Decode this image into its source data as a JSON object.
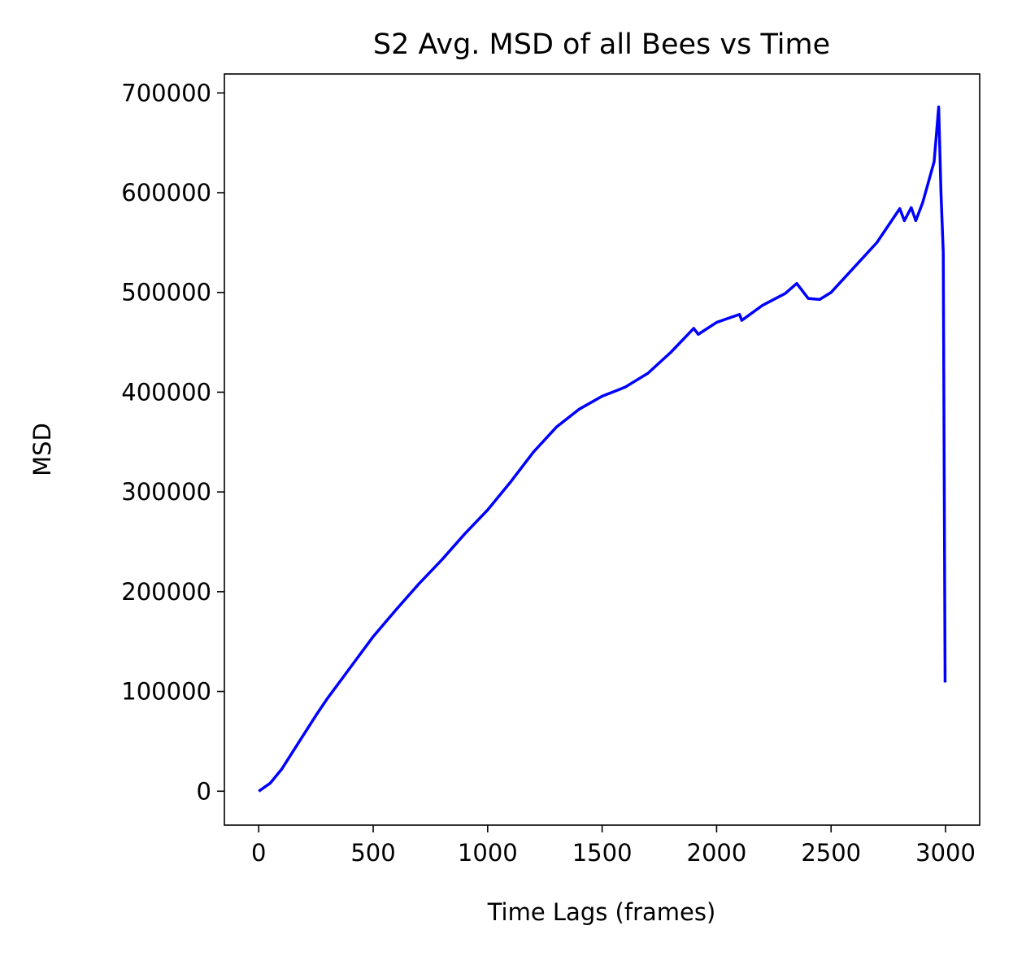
{
  "chart_data": {
    "type": "line",
    "title": "S2 Avg. MSD of all Bees vs Time",
    "xlabel": "Time Lags (frames)",
    "ylabel": "MSD",
    "x": [
      0,
      50,
      100,
      150,
      200,
      250,
      300,
      400,
      500,
      600,
      700,
      800,
      900,
      1000,
      1100,
      1200,
      1300,
      1400,
      1500,
      1600,
      1700,
      1800,
      1900,
      1920,
      2000,
      2100,
      2110,
      2200,
      2300,
      2350,
      2400,
      2450,
      2500,
      2600,
      2700,
      2800,
      2820,
      2850,
      2870,
      2900,
      2950,
      2970,
      2980,
      2990,
      2998
    ],
    "series": [
      {
        "name": "MSD",
        "color": "#0000ff",
        "values": [
          0,
          8000,
          22000,
          40000,
          58000,
          76000,
          93000,
          124000,
          155000,
          182000,
          208000,
          232000,
          258000,
          282000,
          310000,
          340000,
          365000,
          383000,
          396000,
          405000,
          419000,
          440000,
          464000,
          458000,
          470000,
          478000,
          472000,
          487000,
          499000,
          509000,
          494000,
          493000,
          500000,
          525000,
          550000,
          584000,
          572000,
          585000,
          572000,
          590000,
          631000,
          686000,
          600000,
          540000,
          109000
        ]
      }
    ],
    "xlim": [
      -150,
      3149
    ],
    "ylim": [
      -34000,
      719000
    ],
    "xticks": [
      0,
      500,
      1000,
      1500,
      2000,
      2500,
      3000
    ],
    "yticks": [
      0,
      100000,
      200000,
      300000,
      400000,
      500000,
      600000,
      700000
    ]
  }
}
